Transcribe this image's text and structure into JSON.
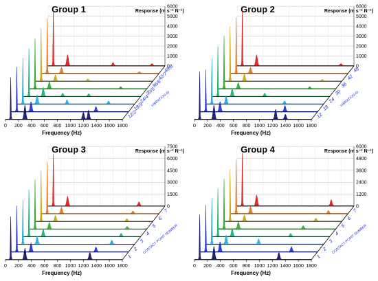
{
  "colors": [
    "#0a0a6a",
    "#1a2bd6",
    "#18a8e0",
    "#10b070",
    "#2aa82a",
    "#c8a400",
    "#e07018",
    "#d81818"
  ],
  "chart_data": [
    {
      "type": "line",
      "title": "Group 1",
      "zlabel": "Response (m s⁻² N⁻¹)",
      "zmax": 6000,
      "zticks": [
        "0",
        "1000",
        "2000",
        "3000",
        "4000",
        "5000",
        "6000"
      ],
      "xlabel": "Frequency (Hz)",
      "xlim": [
        0,
        1800
      ],
      "xticks": [
        "0",
        "200",
        "400",
        "600",
        "800",
        "1000",
        "1200",
        "1400",
        "1600",
        "1800"
      ],
      "depth_label": "VIBRATION ID",
      "depth_ticks": [
        "12/2",
        "18/3",
        "24/4",
        "30/5",
        "36/6",
        "42/7",
        "48/8"
      ],
      "series": [
        {
          "peaks": [
            [
              80,
              4200
            ],
            [
              300,
              1400
            ],
            [
              1200,
              700
            ],
            [
              1280,
              900
            ]
          ]
        },
        {
          "peaks": [
            [
              80,
              4500
            ],
            [
              300,
              1000
            ],
            [
              1300,
              500
            ]
          ]
        },
        {
          "peaks": [
            [
              80,
              4600
            ],
            [
              300,
              900
            ],
            [
              760,
              400
            ],
            [
              1400,
              300
            ]
          ]
        },
        {
          "peaks": [
            [
              80,
              4800
            ],
            [
              300,
              900
            ],
            [
              600,
              300
            ],
            [
              1000,
              250
            ]
          ]
        },
        {
          "peaks": [
            [
              80,
              5000
            ],
            [
              300,
              700
            ],
            [
              1400,
              200
            ]
          ]
        },
        {
          "peaks": [
            [
              80,
              5300
            ],
            [
              300,
              600
            ],
            [
              800,
              200
            ]
          ]
        },
        {
          "peaks": [
            [
              80,
              5500
            ],
            [
              300,
              600
            ],
            [
              1500,
              150
            ]
          ]
        },
        {
          "peaks": [
            [
              80,
              5500
            ],
            [
              300,
              1100
            ],
            [
              1000,
              300
            ],
            [
              1600,
              200
            ]
          ]
        }
      ]
    },
    {
      "type": "line",
      "title": "Group 2",
      "zlabel": "Response (m s⁻² N⁻¹)",
      "zmax": 6000,
      "zticks": [
        "0",
        "1000",
        "2000",
        "3000",
        "4000",
        "5000",
        "6000"
      ],
      "xlabel": "Frequency (Hz)",
      "xlim": [
        0,
        1800
      ],
      "xticks": [
        "0",
        "200",
        "400",
        "600",
        "800",
        "1000",
        "1200",
        "1400",
        "1600",
        "1800"
      ],
      "depth_label": "VIBRATION ID",
      "depth_ticks": [
        "12",
        "18",
        "24",
        "30",
        "36",
        "42",
        "48"
      ],
      "series": [
        {
          "peaks": [
            [
              80,
              4800
            ],
            [
              300,
              1400
            ],
            [
              1250,
              1000
            ],
            [
              1400,
              500
            ]
          ]
        },
        {
          "peaks": [
            [
              80,
              4200
            ],
            [
              300,
              1000
            ],
            [
              1300,
              600
            ]
          ]
        },
        {
          "peaks": [
            [
              80,
              4600
            ],
            [
              300,
              800
            ],
            [
              1200,
              300
            ]
          ]
        },
        {
          "peaks": [
            [
              80,
              5000
            ],
            [
              300,
              800
            ],
            [
              800,
              300
            ]
          ]
        },
        {
          "peaks": [
            [
              80,
              5300
            ],
            [
              300,
              600
            ],
            [
              1400,
              200
            ]
          ]
        },
        {
          "peaks": [
            [
              80,
              5500
            ],
            [
              300,
              700
            ],
            [
              1500,
              150
            ]
          ]
        },
        {
          "peaks": [
            [
              80,
              5600
            ],
            [
              300,
              600
            ]
          ]
        },
        {
          "peaks": [
            [
              80,
              5600
            ],
            [
              300,
              1100
            ],
            [
              1600,
              200
            ]
          ]
        }
      ]
    },
    {
      "type": "line",
      "title": "Group 3",
      "zlabel": "Response (m s⁻² N⁻¹)",
      "zmax": 7500,
      "zticks": [
        "0",
        "1500",
        "3000",
        "4500",
        "6000",
        "7500"
      ],
      "xlabel": "Frequency (Hz)",
      "xlim": [
        0,
        1800
      ],
      "xticks": [
        "0",
        "200",
        "400",
        "600",
        "800",
        "1000",
        "1200",
        "1400",
        "1600",
        "1800"
      ],
      "depth_label": "CONTACT POINT NUMBER",
      "depth_ticks": [
        "1",
        "2",
        "3",
        "4",
        "5",
        "6",
        "7"
      ],
      "series": [
        {
          "peaks": [
            [
              80,
              5400
            ],
            [
              300,
              1400
            ],
            [
              1300,
              900
            ]
          ]
        },
        {
          "peaks": [
            [
              80,
              5800
            ],
            [
              300,
              1100
            ],
            [
              1300,
              600
            ]
          ]
        },
        {
          "peaks": [
            [
              80,
              5600
            ],
            [
              300,
              1000
            ],
            [
              1450,
              500
            ]
          ]
        },
        {
          "peaks": [
            [
              80,
              5900
            ],
            [
              300,
              900
            ],
            [
              1500,
              400
            ]
          ]
        },
        {
          "peaks": [
            [
              80,
              6200
            ],
            [
              300,
              800
            ],
            [
              1500,
              300
            ]
          ]
        },
        {
          "peaks": [
            [
              80,
              6400
            ],
            [
              300,
              700
            ],
            [
              1400,
              300
            ]
          ]
        },
        {
          "peaks": [
            [
              80,
              6500
            ],
            [
              300,
              800
            ],
            [
              1400,
              300
            ]
          ]
        },
        {
          "peaks": [
            [
              80,
              6500
            ],
            [
              300,
              1200
            ],
            [
              1400,
              500
            ]
          ]
        }
      ]
    },
    {
      "type": "line",
      "title": "Group 4",
      "zlabel": "Response (m s⁻² N⁻¹)",
      "zmax": 6000,
      "zticks": [
        "0",
        "1200",
        "2400",
        "3600",
        "4800",
        "6000"
      ],
      "xlabel": "Frequency (Hz)",
      "xlim": [
        0,
        1800
      ],
      "xticks": [
        "0",
        "200",
        "400",
        "600",
        "800",
        "1000",
        "1200",
        "1400",
        "1600",
        "1800"
      ],
      "depth_label": "CONTACT POINT NUMBER",
      "depth_ticks": [
        "1",
        "2",
        "3",
        "4",
        "5",
        "6",
        "7"
      ],
      "series": [
        {
          "peaks": [
            [
              80,
              4500
            ],
            [
              300,
              1300
            ],
            [
              1300,
              700
            ]
          ]
        },
        {
          "peaks": [
            [
              80,
              4700
            ],
            [
              300,
              1000
            ],
            [
              1400,
              500
            ]
          ]
        },
        {
          "peaks": [
            [
              80,
              4600
            ],
            [
              300,
              900
            ],
            [
              800,
              500
            ]
          ]
        },
        {
          "peaks": [
            [
              80,
              4800
            ],
            [
              300,
              800
            ],
            [
              1200,
              300
            ]
          ]
        },
        {
          "peaks": [
            [
              80,
              5000
            ],
            [
              300,
              700
            ],
            [
              1300,
              300
            ]
          ]
        },
        {
          "peaks": [
            [
              80,
              5200
            ],
            [
              300,
              600
            ],
            [
              1400,
              300
            ]
          ]
        },
        {
          "peaks": [
            [
              80,
              5400
            ],
            [
              300,
              700
            ],
            [
              1500,
              300
            ]
          ]
        },
        {
          "peaks": [
            [
              80,
              5300
            ],
            [
              300,
              1100
            ],
            [
              1450,
              600
            ]
          ]
        }
      ]
    }
  ]
}
